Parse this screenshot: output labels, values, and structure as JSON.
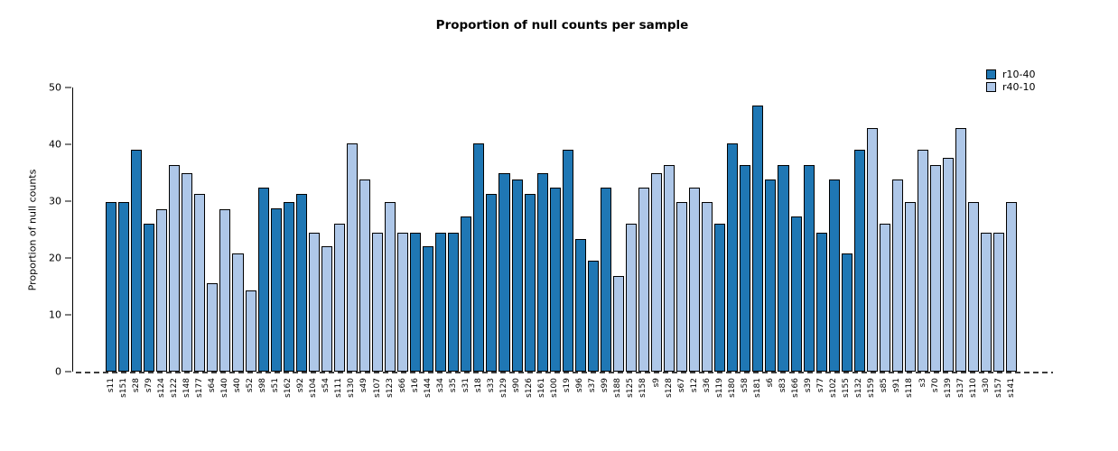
{
  "chart_data": {
    "type": "bar",
    "title": "Proportion of null counts per sample",
    "xlabel": "",
    "ylabel": "Proportion of null counts",
    "ylim": [
      0,
      50
    ],
    "yticks": [
      0,
      10,
      20,
      30,
      40,
      50
    ],
    "grid": false,
    "legend_position": "top-right",
    "baseline_style": "dashed",
    "bar_edge_color": "#000000",
    "baseline_color": "#3d3d3d",
    "legend": [
      {
        "label": "r10-40",
        "color": "#1f77b4"
      },
      {
        "label": "r40-10",
        "color": "#aec7e8"
      }
    ],
    "samples": [
      {
        "label": "s11",
        "group": "r10-40",
        "value": 29.8
      },
      {
        "label": "s151",
        "group": "r10-40",
        "value": 29.8
      },
      {
        "label": "s28",
        "group": "r10-40",
        "value": 39.0
      },
      {
        "label": "s79",
        "group": "r10-40",
        "value": 26.0
      },
      {
        "label": "s124",
        "group": "r40-10",
        "value": 28.5
      },
      {
        "label": "s122",
        "group": "r40-10",
        "value": 36.4
      },
      {
        "label": "s148",
        "group": "r40-10",
        "value": 35.0
      },
      {
        "label": "s177",
        "group": "r40-10",
        "value": 31.2
      },
      {
        "label": "s64",
        "group": "r40-10",
        "value": 15.6
      },
      {
        "label": "s140",
        "group": "r40-10",
        "value": 28.5
      },
      {
        "label": "s40",
        "group": "r40-10",
        "value": 20.8
      },
      {
        "label": "s52",
        "group": "r40-10",
        "value": 14.3
      },
      {
        "label": "s98",
        "group": "r10-40",
        "value": 32.4
      },
      {
        "label": "s51",
        "group": "r10-40",
        "value": 28.7
      },
      {
        "label": "s162",
        "group": "r10-40",
        "value": 29.8
      },
      {
        "label": "s92",
        "group": "r10-40",
        "value": 31.2
      },
      {
        "label": "s104",
        "group": "r40-10",
        "value": 24.5
      },
      {
        "label": "s54",
        "group": "r40-10",
        "value": 22.1
      },
      {
        "label": "s111",
        "group": "r40-10",
        "value": 26.0
      },
      {
        "label": "s130",
        "group": "r40-10",
        "value": 40.2
      },
      {
        "label": "s49",
        "group": "r40-10",
        "value": 33.8
      },
      {
        "label": "s107",
        "group": "r40-10",
        "value": 24.5
      },
      {
        "label": "s123",
        "group": "r40-10",
        "value": 29.8
      },
      {
        "label": "s66",
        "group": "r40-10",
        "value": 24.5
      },
      {
        "label": "s16",
        "group": "r10-40",
        "value": 24.5
      },
      {
        "label": "s144",
        "group": "r10-40",
        "value": 22.1
      },
      {
        "label": "s34",
        "group": "r10-40",
        "value": 24.5
      },
      {
        "label": "s35",
        "group": "r10-40",
        "value": 24.5
      },
      {
        "label": "s31",
        "group": "r10-40",
        "value": 27.3
      },
      {
        "label": "s18",
        "group": "r10-40",
        "value": 40.1
      },
      {
        "label": "s33",
        "group": "r10-40",
        "value": 31.2
      },
      {
        "label": "s129",
        "group": "r10-40",
        "value": 35.0
      },
      {
        "label": "s90",
        "group": "r10-40",
        "value": 33.8
      },
      {
        "label": "s126",
        "group": "r10-40",
        "value": 31.2
      },
      {
        "label": "s161",
        "group": "r10-40",
        "value": 35.0
      },
      {
        "label": "s100",
        "group": "r10-40",
        "value": 32.4
      },
      {
        "label": "s19",
        "group": "r10-40",
        "value": 39.0
      },
      {
        "label": "s96",
        "group": "r10-40",
        "value": 23.4
      },
      {
        "label": "s37",
        "group": "r10-40",
        "value": 19.5
      },
      {
        "label": "s99",
        "group": "r10-40",
        "value": 32.4
      },
      {
        "label": "s188",
        "group": "r40-10",
        "value": 16.8
      },
      {
        "label": "s125",
        "group": "r40-10",
        "value": 26.0
      },
      {
        "label": "s158",
        "group": "r40-10",
        "value": 32.4
      },
      {
        "label": "s9",
        "group": "r40-10",
        "value": 35.0
      },
      {
        "label": "s128",
        "group": "r40-10",
        "value": 36.4
      },
      {
        "label": "s67",
        "group": "r40-10",
        "value": 29.8
      },
      {
        "label": "s12",
        "group": "r40-10",
        "value": 32.4
      },
      {
        "label": "s36",
        "group": "r40-10",
        "value": 29.8
      },
      {
        "label": "s119",
        "group": "r10-40",
        "value": 26.0
      },
      {
        "label": "s180",
        "group": "r10-40",
        "value": 40.2
      },
      {
        "label": "s58",
        "group": "r10-40",
        "value": 36.4
      },
      {
        "label": "s181",
        "group": "r10-40",
        "value": 46.9
      },
      {
        "label": "s6",
        "group": "r10-40",
        "value": 33.8
      },
      {
        "label": "s83",
        "group": "r10-40",
        "value": 36.4
      },
      {
        "label": "s166",
        "group": "r10-40",
        "value": 27.3
      },
      {
        "label": "s39",
        "group": "r10-40",
        "value": 36.4
      },
      {
        "label": "s77",
        "group": "r10-40",
        "value": 24.5
      },
      {
        "label": "s102",
        "group": "r10-40",
        "value": 33.8
      },
      {
        "label": "s155",
        "group": "r10-40",
        "value": 20.8
      },
      {
        "label": "s132",
        "group": "r10-40",
        "value": 39.0
      },
      {
        "label": "s159",
        "group": "r40-10",
        "value": 42.9
      },
      {
        "label": "s85",
        "group": "r40-10",
        "value": 26.0
      },
      {
        "label": "s91",
        "group": "r40-10",
        "value": 33.8
      },
      {
        "label": "s118",
        "group": "r40-10",
        "value": 29.8
      },
      {
        "label": "s3",
        "group": "r40-10",
        "value": 39.0
      },
      {
        "label": "s70",
        "group": "r40-10",
        "value": 36.4
      },
      {
        "label": "s139",
        "group": "r40-10",
        "value": 37.7
      },
      {
        "label": "s137",
        "group": "r40-10",
        "value": 42.9
      },
      {
        "label": "s110",
        "group": "r40-10",
        "value": 29.8
      },
      {
        "label": "s30",
        "group": "r40-10",
        "value": 24.5
      },
      {
        "label": "s157",
        "group": "r40-10",
        "value": 24.5
      },
      {
        "label": "s141",
        "group": "r40-10",
        "value": 29.8
      }
    ]
  }
}
